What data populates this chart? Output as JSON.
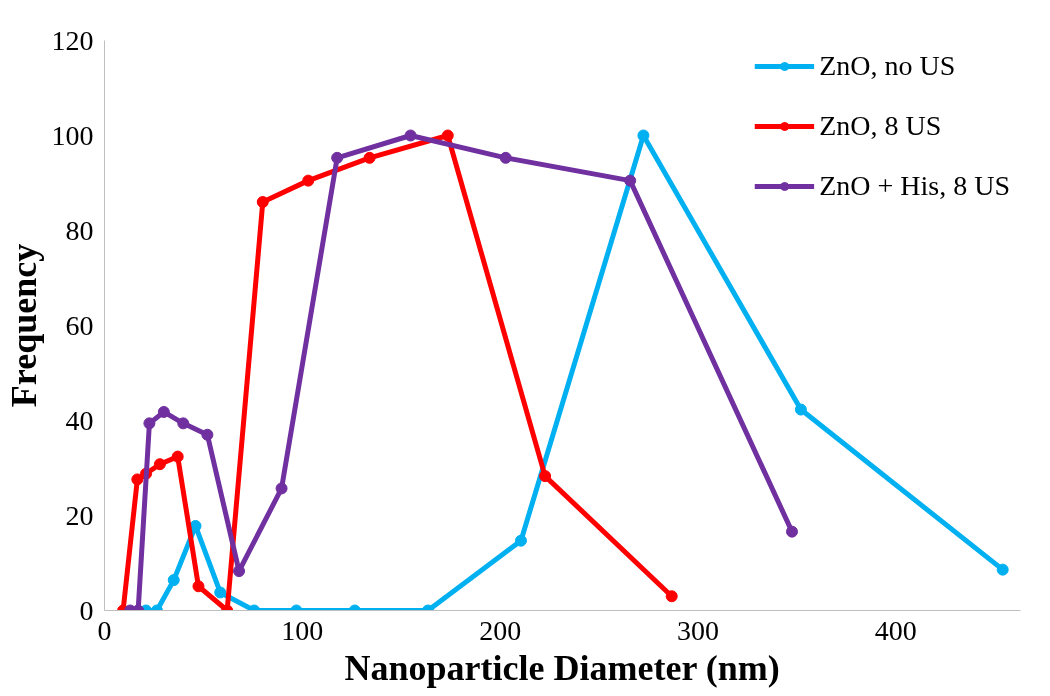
{
  "chart_data": {
    "type": "line",
    "xlabel": "Nanoparticle Diameter (nm)",
    "ylabel": "Frequency",
    "xlim": [
      0,
      463
    ],
    "ylim": [
      0,
      120
    ],
    "xticks": [
      0,
      100,
      200,
      300,
      400
    ],
    "yticks": [
      0,
      20,
      40,
      60,
      80,
      100,
      120
    ],
    "grid": false,
    "legend": "top right",
    "marker": "circle",
    "line_style": "solid",
    "series": [
      {
        "name": "ZnO, no US",
        "color": "#00b0f0",
        "x": [
          21,
          26.5,
          35,
          46,
          58.5,
          75.7,
          97,
          126.5,
          163.5,
          210.5,
          272.4,
          352,
          454
        ],
        "values": [
          0,
          0,
          6.4,
          17.8,
          3.8,
          0,
          0,
          0,
          0,
          14.7,
          100,
          42.3,
          8.6
        ]
      },
      {
        "name": "ZnO, 8 US",
        "color": "#ff0000",
        "x": [
          9.4,
          16.6,
          21,
          28,
          37,
          47.5,
          62,
          80,
          103,
          134,
          173.5,
          222.7,
          286.7
        ],
        "values": [
          0,
          27.6,
          28.8,
          30.8,
          32.4,
          5.1,
          0,
          86,
          90.5,
          95.3,
          100,
          28.3,
          3
        ]
      },
      {
        "name": "ZnO + His, 8 US",
        "color": "#7030a0",
        "x": [
          13,
          17,
          22.7,
          30,
          39.8,
          52,
          68,
          89.5,
          117.6,
          154.7,
          202.8,
          265.7,
          347.5
        ],
        "values": [
          0,
          0,
          39.4,
          41.8,
          39.4,
          37,
          8.3,
          25.7,
          95.3,
          100,
          95.3,
          90.5,
          16.6
        ]
      }
    ]
  }
}
